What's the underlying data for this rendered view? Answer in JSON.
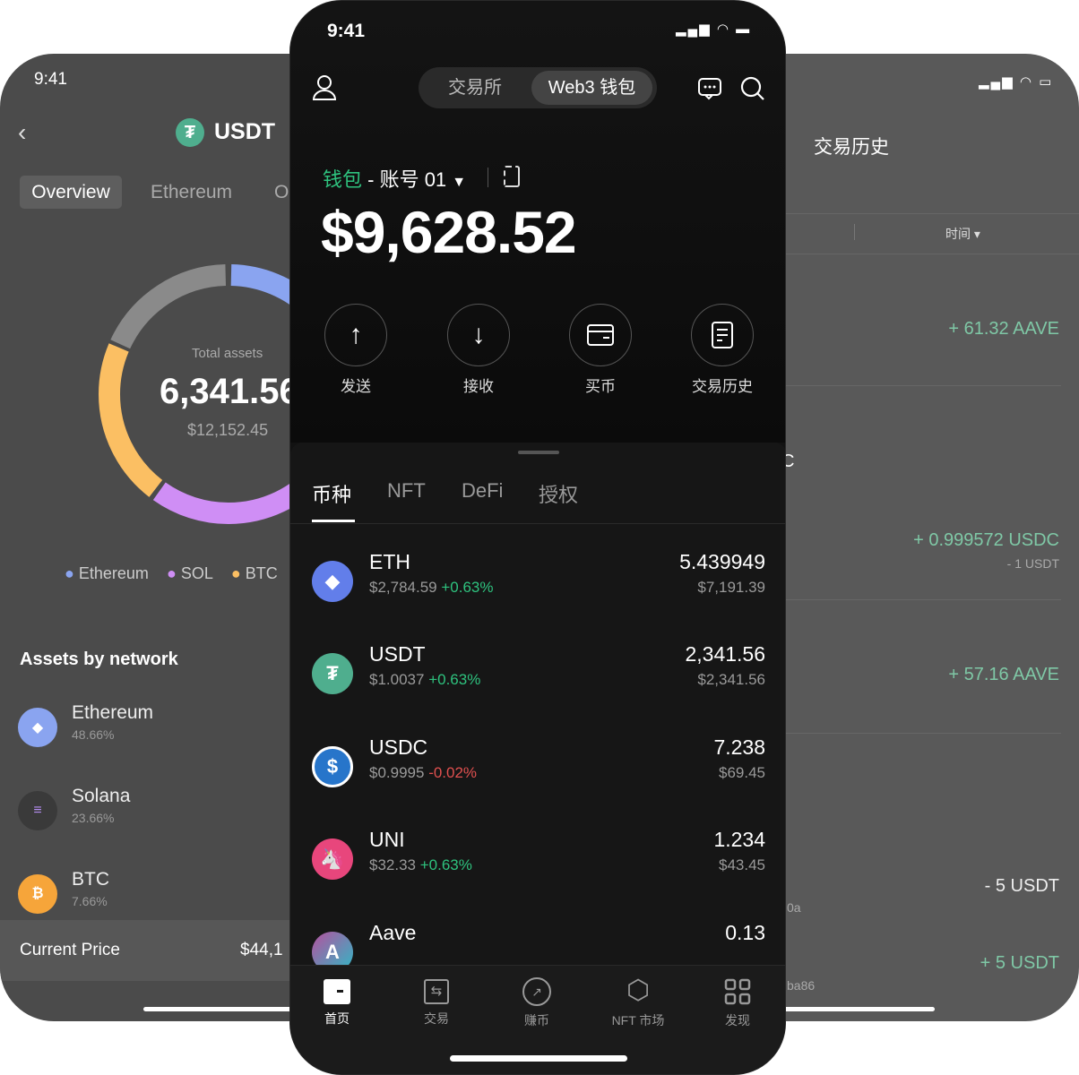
{
  "left_screen": {
    "time": "9:41",
    "title": "USDT",
    "tabs": [
      "Overview",
      "Ethereum",
      "O"
    ],
    "total_label": "Total assets",
    "total_value": "6,341.56",
    "total_usd": "$12,152.45",
    "legend": [
      {
        "label": "Ethereum",
        "color": "#8aa4f0"
      },
      {
        "label": "SOL",
        "color": "#cf8ef5"
      },
      {
        "label": "BTC",
        "color": "#fbbf63"
      }
    ],
    "donut_colors": {
      "gray": "#8a8a8a",
      "blue": "#8aa4f0",
      "purple": "#cf8ef5",
      "orange": "#fbbf63"
    },
    "section_title": "Assets by network",
    "networks": [
      {
        "name": "Ethereum",
        "pct": "48.66%",
        "icon": "ethereum-icon"
      },
      {
        "name": "Solana",
        "pct": "23.66%",
        "icon": "solana-icon"
      },
      {
        "name": "BTC",
        "pct": "7.66%",
        "icon": "bitcoin-icon"
      }
    ],
    "current_price_label": "Current Price",
    "current_price_value": "$44,1"
  },
  "center_screen": {
    "time": "9:41",
    "segments": [
      "交易所",
      "Web3 钱包"
    ],
    "wallet_label": "钱包",
    "account_label": "- 账号 01",
    "balance": "$9,628.52",
    "actions": [
      {
        "label": "发送",
        "icon": "arrow-up-icon"
      },
      {
        "label": "接收",
        "icon": "arrow-down-icon"
      },
      {
        "label": "买币",
        "icon": "card-icon"
      },
      {
        "label": "交易历史",
        "icon": "document-icon"
      }
    ],
    "asset_tabs": [
      "币种",
      "NFT",
      "DeFi",
      "授权"
    ],
    "tokens": [
      {
        "name": "ETH",
        "price": "$2,784.59",
        "change": "+0.63%",
        "amount": "5.439949",
        "value": "$7,191.39",
        "up": true
      },
      {
        "name": "USDT",
        "price": "$1.0037",
        "change": "+0.63%",
        "amount": "2,341.56",
        "value": "$2,341.56",
        "up": true
      },
      {
        "name": "USDC",
        "price": "$0.9995",
        "change": "-0.02%",
        "amount": "7.238",
        "value": "$69.45",
        "up": false
      },
      {
        "name": "UNI",
        "price": "$32.33",
        "change": "+0.63%",
        "amount": "1.234",
        "value": "$43.45",
        "up": true
      },
      {
        "name": "Aave",
        "amount": "0.13"
      }
    ],
    "nav": [
      {
        "label": "首页",
        "icon": "home-icon",
        "active": true
      },
      {
        "label": "交易",
        "icon": "trade-icon"
      },
      {
        "label": "赚币",
        "icon": "earn-icon"
      },
      {
        "label": "NFT 市场",
        "icon": "nft-market-icon"
      },
      {
        "label": "发现",
        "icon": "discover-icon"
      }
    ],
    "accent": "#2ec27e"
  },
  "right_screen": {
    "title": "交易历史",
    "filter_label": "时间",
    "transactions": [
      {
        "amount": "+ 61.32 AAVE"
      },
      {
        "partial": "C"
      },
      {
        "amount": "+ 0.999572 USDC",
        "sub": "- 1 USDT"
      },
      {
        "amount": "+ 57.16 AAVE"
      },
      {
        "amount": "- 5 USDT",
        "partial": "0a"
      },
      {
        "amount": "+ 5 USDT",
        "partial": "ba86"
      }
    ]
  }
}
